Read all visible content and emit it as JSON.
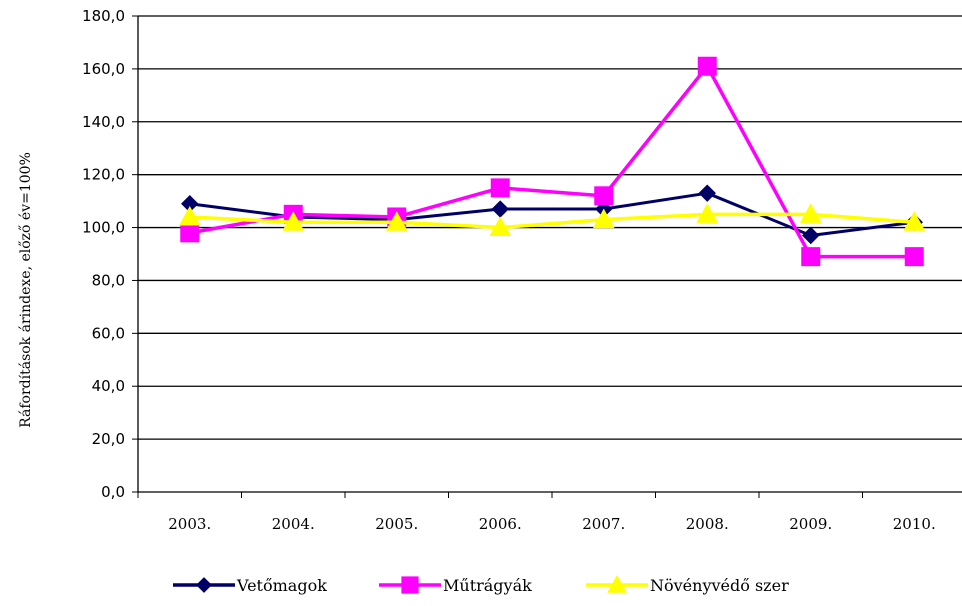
{
  "chart_data": {
    "type": "line",
    "title": "",
    "xlabel": "",
    "ylabel": "Ráfordítások árindexe, előző év=100%",
    "categories": [
      "2003.",
      "2004.",
      "2005.",
      "2006.",
      "2007.",
      "2008.",
      "2009.",
      "2010."
    ],
    "ylim": [
      0,
      180
    ],
    "yticks": [
      "0,0",
      "20,0",
      "40,0",
      "60,0",
      "80,0",
      "100,0",
      "120,0",
      "140,0",
      "160,0",
      "180,0"
    ],
    "grid": "horizontal",
    "legend_position": "bottom",
    "series": [
      {
        "name": "Vetőmagok",
        "color": "#000066",
        "marker": "diamond",
        "values": [
          109,
          104,
          103,
          107,
          107,
          113,
          97,
          102
        ]
      },
      {
        "name": "Műtrágyák",
        "color": "#FF00FF",
        "marker": "square",
        "values": [
          98,
          105,
          104,
          115,
          112,
          161,
          89,
          89
        ]
      },
      {
        "name": "Növényvédő szer",
        "color": "#FFFF00",
        "marker": "triangle",
        "values": [
          104,
          102,
          102,
          100,
          103,
          105,
          105,
          102
        ]
      }
    ]
  }
}
